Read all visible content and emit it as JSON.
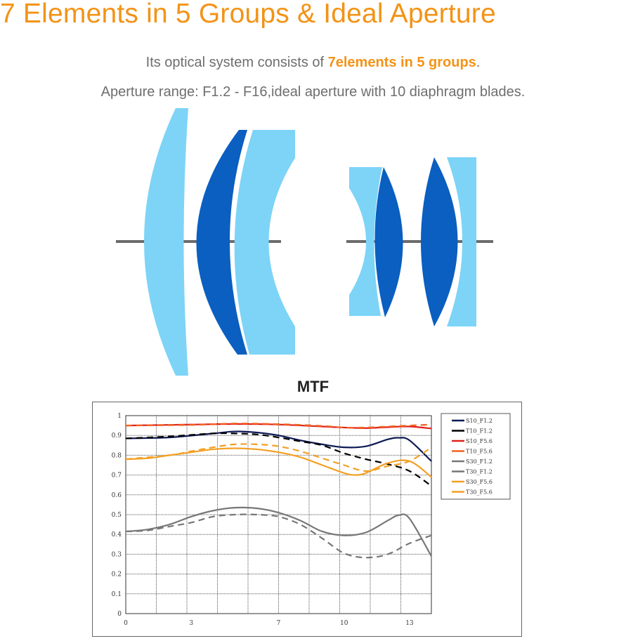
{
  "header": {
    "title": "7 Elements in 5 Groups & Ideal Aperture",
    "line1_prefix": "Its optical system consists of ",
    "line1_highlight": "7elements in 5 groups",
    "line1_suffix": ".",
    "line2": "Aperture range: F1.2 - F16,ideal aperture with 10 diaphragm blades."
  },
  "colors": {
    "accent": "#f39317",
    "lens_light": "#7dd4f7",
    "lens_dark": "#0a5fc0",
    "axis": "#6b6b6b"
  },
  "chart_data": {
    "type": "line",
    "title": "MTF",
    "xlabel": "",
    "ylabel": "",
    "xlim": [
      0,
      14
    ],
    "ylim": [
      0,
      1
    ],
    "grid": true,
    "legend": "right",
    "xticks": [
      0,
      3,
      7,
      10,
      13
    ],
    "yticks": [
      0,
      0.1,
      0.2,
      0.3,
      0.4,
      0.5,
      0.6,
      0.7,
      0.8,
      0.9,
      1
    ],
    "series": [
      {
        "name": "S10_F1.2",
        "color": "#0d1a55",
        "dash": false,
        "x": [
          0,
          2,
          4,
          5,
          6,
          7,
          8,
          9,
          10,
          11,
          12,
          12.5,
          13,
          14
        ],
        "y": [
          0.885,
          0.89,
          0.91,
          0.92,
          0.915,
          0.9,
          0.875,
          0.855,
          0.84,
          0.845,
          0.88,
          0.888,
          0.875,
          0.77
        ]
      },
      {
        "name": "T10_F1.2",
        "color": "#000000",
        "dash": true,
        "x": [
          0,
          2,
          4,
          5,
          6,
          7,
          8,
          9,
          10,
          11,
          12,
          13,
          14
        ],
        "y": [
          0.885,
          0.895,
          0.91,
          0.91,
          0.905,
          0.89,
          0.87,
          0.85,
          0.81,
          0.78,
          0.755,
          0.72,
          0.645
        ]
      },
      {
        "name": "S10_F5.6",
        "color": "#e0201c",
        "dash": false,
        "x": [
          0,
          3,
          5,
          7,
          9,
          10,
          11,
          12,
          13,
          14
        ],
        "y": [
          0.95,
          0.955,
          0.958,
          0.955,
          0.945,
          0.94,
          0.937,
          0.942,
          0.945,
          0.935
        ]
      },
      {
        "name": "T10_F5.6",
        "color": "#f0641e",
        "dash": true,
        "x": [
          0,
          3,
          5,
          7,
          9,
          10,
          11,
          12,
          13,
          14
        ],
        "y": [
          0.95,
          0.953,
          0.96,
          0.957,
          0.948,
          0.94,
          0.94,
          0.945,
          0.95,
          0.955
        ]
      },
      {
        "name": "S30_F1.2",
        "color": "#777777",
        "dash": false,
        "x": [
          0,
          1,
          2,
          3,
          4,
          5,
          6,
          7,
          8,
          9,
          10,
          11,
          12,
          12.5,
          13,
          14
        ],
        "y": [
          0.415,
          0.425,
          0.45,
          0.49,
          0.52,
          0.535,
          0.532,
          0.51,
          0.47,
          0.415,
          0.395,
          0.41,
          0.47,
          0.497,
          0.48,
          0.29
        ]
      },
      {
        "name": "T30_F1.2",
        "color": "#777777",
        "dash": true,
        "x": [
          0,
          1,
          2,
          3,
          4,
          5,
          6,
          7,
          8,
          9,
          10,
          11,
          12,
          13,
          14
        ],
        "y": [
          0.415,
          0.42,
          0.44,
          0.46,
          0.49,
          0.5,
          0.5,
          0.49,
          0.45,
          0.38,
          0.305,
          0.283,
          0.3,
          0.355,
          0.395
        ]
      },
      {
        "name": "S30_F5.6",
        "color": "#f3a024",
        "dash": false,
        "x": [
          0,
          1,
          2,
          3,
          4,
          5,
          6,
          7,
          8,
          9,
          10,
          10.5,
          11,
          12,
          13,
          14
        ],
        "y": [
          0.78,
          0.785,
          0.8,
          0.815,
          0.83,
          0.835,
          0.83,
          0.815,
          0.79,
          0.75,
          0.71,
          0.7,
          0.71,
          0.76,
          0.77,
          0.69
        ]
      },
      {
        "name": "T30_F5.6",
        "color": "#f3a024",
        "dash": true,
        "x": [
          0,
          2,
          3,
          4,
          5,
          6,
          7,
          8,
          9,
          10,
          11,
          12,
          13,
          14
        ],
        "y": [
          0.78,
          0.8,
          0.82,
          0.84,
          0.855,
          0.855,
          0.845,
          0.82,
          0.785,
          0.75,
          0.72,
          0.745,
          0.77,
          0.84
        ]
      }
    ]
  }
}
